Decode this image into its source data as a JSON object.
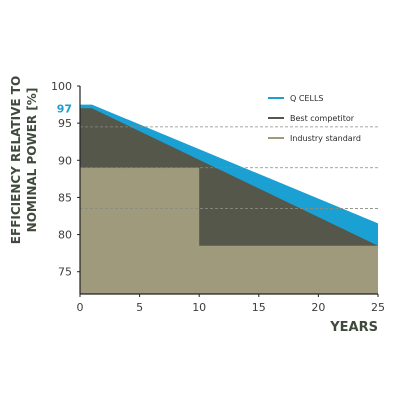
{
  "chart_data": {
    "type": "area",
    "xlabel": "YEARS",
    "ylabel_lines": [
      "EFFICIENCY RELATIVE TO",
      "NOMINAL POWER [%]"
    ],
    "xlim": [
      0,
      25
    ],
    "ylim": [
      72,
      100
    ],
    "x_ticks": [
      "0",
      "5",
      "10",
      "15",
      "20",
      "25"
    ],
    "y_ticks": [
      "75",
      "80",
      "85",
      "90",
      "95",
      "100"
    ],
    "highlight_tick": {
      "value": 97,
      "label": "97"
    },
    "series": [
      {
        "name": "Q CELLS",
        "color": "#1aa0d2",
        "points": [
          [
            0,
            97.5
          ],
          [
            1,
            97.5
          ],
          [
            25,
            81.5
          ]
        ]
      },
      {
        "name": "Best competitor",
        "color": "#55574a",
        "points": [
          [
            0,
            97
          ],
          [
            1,
            97
          ],
          [
            25,
            78.5
          ]
        ]
      },
      {
        "name": "Industry standard",
        "color": "#9f9a7b",
        "points": [
          [
            0,
            89
          ],
          [
            10,
            89
          ],
          [
            10,
            78.5
          ],
          [
            25,
            78.5
          ]
        ]
      }
    ],
    "reference_lines": [
      94.5,
      89,
      83.5
    ],
    "legend_position": "top-right"
  }
}
